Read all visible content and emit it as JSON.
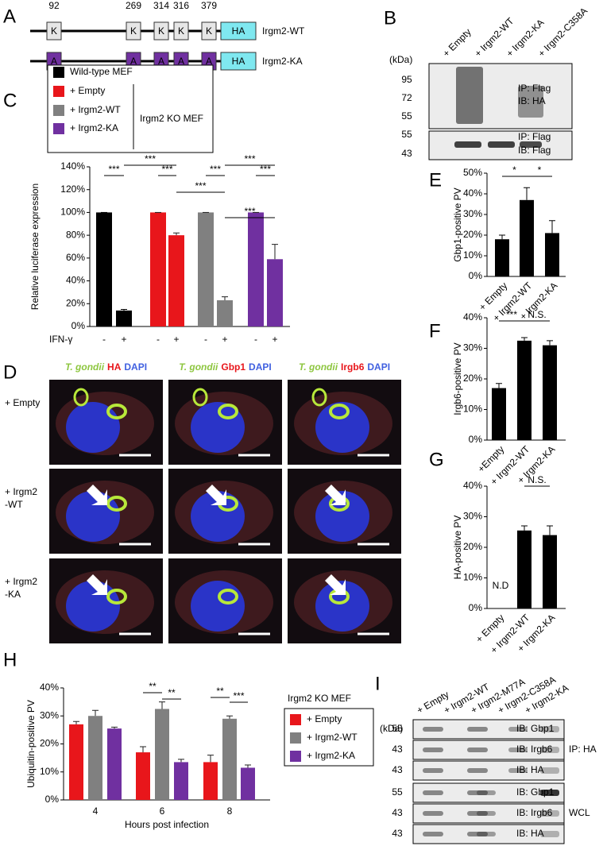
{
  "panel_labels": [
    "A",
    "B",
    "C",
    "D",
    "E",
    "F",
    "G",
    "H",
    "I"
  ],
  "panel_a": {
    "residues": [
      92,
      269,
      314,
      316,
      379
    ],
    "wt_label": "Irgm2-WT",
    "ka_label": "Irgm2-KA",
    "wt_letter": "K",
    "ka_letter": "A",
    "tag": "HA"
  },
  "panel_b": {
    "lanes": [
      "+ Empty",
      "+ Irgm2-WT",
      "+ Irgm2-KA",
      "+ Irgm2-C358A"
    ],
    "kda": "(kDa)",
    "markers": [
      95,
      72,
      55,
      55,
      43
    ],
    "labels": [
      "IP: Flag",
      "IB: HA",
      "IP: Flag",
      "IB: Flag"
    ]
  },
  "panel_d": {
    "columns": [
      [
        "T. gondii",
        "HA",
        "DAPI"
      ],
      [
        "T. gondii",
        "Gbp1",
        "DAPI"
      ],
      [
        "T. gondii",
        "Irgb6",
        "DAPI"
      ]
    ],
    "rows": [
      [
        "+ Empty"
      ],
      [
        "+ Irgm2",
        "-WT"
      ],
      [
        "+ Irgm2",
        "-KA"
      ]
    ]
  },
  "panel_i": {
    "lanes": [
      "+ Empty",
      "+ Irgm2-WT",
      "+ Irgm2-M77A",
      "+ Irgm2-C358A",
      "+ Irgm2-KA"
    ],
    "kda": "(kDa)",
    "markers": [
      55,
      43,
      43,
      55,
      43,
      43
    ],
    "blots": [
      "IB: Gbp1",
      "IB: Irgb6",
      "IB: HA",
      "IB: Gbp1",
      "IB: Irgb6",
      "IB: HA"
    ],
    "groups": [
      "IP: HA",
      "WCL"
    ]
  },
  "chart_data": [
    {
      "type": "bar",
      "y_label": "Relative luciferase expression",
      "row_label": "IFN-γ",
      "categories": [
        "-",
        "+"
      ],
      "series": [
        {
          "name": "Wild-type MEF",
          "color": "#000000",
          "values": [
            100,
            14
          ],
          "errors": [
            0,
            1
          ]
        },
        {
          "name": "+ Empty",
          "color": "#e8161b",
          "values": [
            100,
            80
          ],
          "errors": [
            0,
            2
          ]
        },
        {
          "name": "+ Irgm2-WT",
          "color": "#808080",
          "values": [
            100,
            23
          ],
          "errors": [
            0,
            3
          ]
        },
        {
          "name": "+ Irgm2-KA",
          "color": "#7030a0",
          "values": [
            100,
            59
          ],
          "errors": [
            0,
            13
          ]
        }
      ],
      "legend_group_label": "Irgm2 KO MEF",
      "ylim": [
        0,
        140
      ],
      "yticks": [
        {
          "value": 0,
          "label": "0%"
        },
        {
          "value": 20,
          "label": "20%"
        },
        {
          "value": 40,
          "label": "40%"
        },
        {
          "value": 60,
          "label": "60%"
        },
        {
          "value": 80,
          "label": "80%"
        },
        {
          "value": 100,
          "label": "100%"
        },
        {
          "value": 120,
          "label": "120%"
        },
        {
          "value": 140,
          "label": "140%"
        }
      ],
      "annotations": [
        "***",
        "***",
        "***",
        "***",
        "***",
        "***",
        "***",
        "***"
      ]
    },
    {
      "type": "bar",
      "y_label": "Gbp1-positive PV",
      "categories": [
        "+ Empty",
        "+ Irgm2-WT",
        "+ Irgm2-KA"
      ],
      "values": [
        18,
        37,
        21
      ],
      "errors": [
        2,
        6,
        6
      ],
      "color": "#000000",
      "ylim": [
        0,
        50
      ],
      "yticks": [
        {
          "value": 0,
          "label": "0%"
        },
        {
          "value": 10,
          "label": "10%"
        },
        {
          "value": 20,
          "label": "20%"
        },
        {
          "value": 30,
          "label": "30%"
        },
        {
          "value": 40,
          "label": "40%"
        },
        {
          "value": 50,
          "label": "50%"
        }
      ],
      "annotations": [
        "*",
        "*"
      ]
    },
    {
      "type": "bar",
      "y_label": "Irgb6-positive PV",
      "categories": [
        "+Empty",
        "+ Irgm2-WT",
        "+ Irgm2-KA"
      ],
      "values": [
        17,
        32.5,
        31
      ],
      "errors": [
        1.5,
        1,
        1.5
      ],
      "color": "#000000",
      "ylim": [
        0,
        40
      ],
      "yticks": [
        {
          "value": 0,
          "label": "0%"
        },
        {
          "value": 10,
          "label": "10%"
        },
        {
          "value": 20,
          "label": "20%"
        },
        {
          "value": 30,
          "label": "30%"
        },
        {
          "value": 40,
          "label": "40%"
        }
      ],
      "annotations": [
        "***",
        "N.S."
      ]
    },
    {
      "type": "bar",
      "y_label": "HA-positive PV",
      "categories": [
        "+ Empty",
        "+ Irgm2-WT",
        "+ Irgm2-KA"
      ],
      "values": [
        0,
        25.5,
        24
      ],
      "errors": [
        0,
        1.5,
        3
      ],
      "color": "#000000",
      "ylim": [
        0,
        40
      ],
      "yticks": [
        {
          "value": 0,
          "label": "0%"
        },
        {
          "value": 10,
          "label": "10%"
        },
        {
          "value": 20,
          "label": "20%"
        },
        {
          "value": 30,
          "label": "30%"
        },
        {
          "value": 40,
          "label": "40%"
        }
      ],
      "annotations": [
        "N.S.",
        "N.D"
      ]
    },
    {
      "type": "bar",
      "y_label": "Ubiquitin-positive PV",
      "x_label": "Hours post infection",
      "categories": [
        "4",
        "6",
        "8"
      ],
      "series": [
        {
          "name": "+ Empty",
          "color": "#e8161b",
          "values": [
            27,
            17,
            13.5
          ],
          "errors": [
            1,
            2,
            2.5
          ]
        },
        {
          "name": "+ Irgm2-WT",
          "color": "#808080",
          "values": [
            30,
            32.5,
            29
          ],
          "errors": [
            2,
            2.5,
            1
          ]
        },
        {
          "name": "+ Irgm2-KA",
          "color": "#7030a0",
          "values": [
            25.5,
            13.5,
            11.5
          ],
          "errors": [
            0.5,
            1,
            1
          ]
        }
      ],
      "legend_title": "Irgm2 KO MEF",
      "ylim": [
        0,
        40
      ],
      "yticks": [
        {
          "value": 0,
          "label": "0%"
        },
        {
          "value": 10,
          "label": "10%"
        },
        {
          "value": 20,
          "label": "20%"
        },
        {
          "value": 30,
          "label": "30%"
        },
        {
          "value": 40,
          "label": "40%"
        }
      ],
      "annotations": [
        "**",
        "**",
        "**",
        "***"
      ]
    }
  ]
}
